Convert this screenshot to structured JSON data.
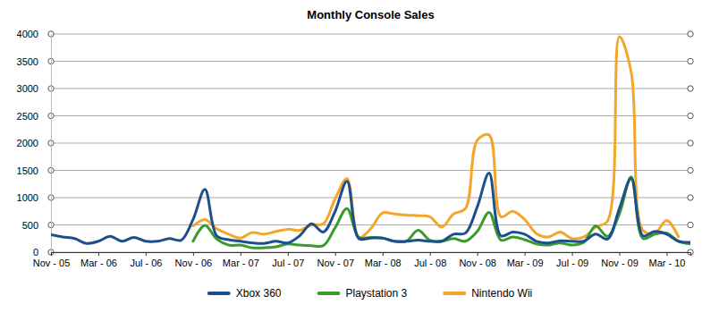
{
  "chart_data": {
    "type": "line",
    "title": "Monthly Console Sales",
    "categories": [
      "Nov - 05",
      null,
      null,
      null,
      "Mar - 06",
      null,
      null,
      null,
      "Jul - 06",
      null,
      null,
      null,
      "Nov - 06",
      null,
      null,
      null,
      "Mar - 07",
      null,
      null,
      null,
      "Jul - 07",
      null,
      null,
      null,
      "Nov - 07",
      null,
      null,
      null,
      "Mar - 08",
      null,
      null,
      null,
      "Jul - 08",
      null,
      null,
      null,
      "Nov - 08",
      null,
      null,
      null,
      "Mar - 09",
      null,
      null,
      null,
      "Jul - 09",
      null,
      null,
      null,
      "Nov - 09",
      null,
      null,
      null,
      "Mar - 10",
      null,
      null
    ],
    "series": [
      {
        "name": "Xbox 360",
        "color": "#1c4f8c",
        "values": [
          320,
          280,
          250,
          160,
          200,
          290,
          200,
          270,
          200,
          200,
          250,
          220,
          600,
          1150,
          300,
          230,
          200,
          170,
          160,
          200,
          170,
          300,
          520,
          370,
          750,
          1300,
          250,
          260,
          260,
          200,
          200,
          220,
          200,
          200,
          330,
          350,
          830,
          1450,
          300,
          370,
          330,
          200,
          170,
          210,
          200,
          200,
          330,
          240,
          800,
          1350,
          300,
          380,
          330,
          200,
          180
        ]
      },
      {
        "name": "Playstation 3",
        "color": "#3b9a2c",
        "values": [
          null,
          null,
          null,
          null,
          null,
          null,
          null,
          null,
          null,
          null,
          null,
          null,
          200,
          490,
          240,
          130,
          130,
          80,
          80,
          100,
          150,
          130,
          120,
          120,
          450,
          800,
          270,
          270,
          260,
          200,
          200,
          400,
          220,
          200,
          250,
          200,
          380,
          730,
          220,
          280,
          230,
          150,
          130,
          170,
          130,
          180,
          480,
          290,
          700,
          1380,
          250,
          330,
          350,
          200,
          150
        ]
      },
      {
        "name": "Nintendo Wii",
        "color": "#f4a62a",
        "values": [
          null,
          null,
          null,
          null,
          null,
          null,
          null,
          null,
          null,
          null,
          null,
          null,
          480,
          600,
          430,
          330,
          260,
          360,
          330,
          380,
          420,
          400,
          500,
          520,
          980,
          1350,
          270,
          430,
          720,
          700,
          680,
          670,
          650,
          460,
          700,
          800,
          2050,
          2150,
          650,
          750,
          600,
          340,
          280,
          370,
          250,
          280,
          460,
          570,
          3950,
          3300,
          400,
          350,
          580,
          280,
          null
        ]
      }
    ],
    "ylim": [
      0,
      4000
    ],
    "yticks": [
      0,
      500,
      1000,
      1500,
      2000,
      2500,
      3000,
      3500,
      4000
    ],
    "grid": true,
    "legend": "bottom"
  }
}
